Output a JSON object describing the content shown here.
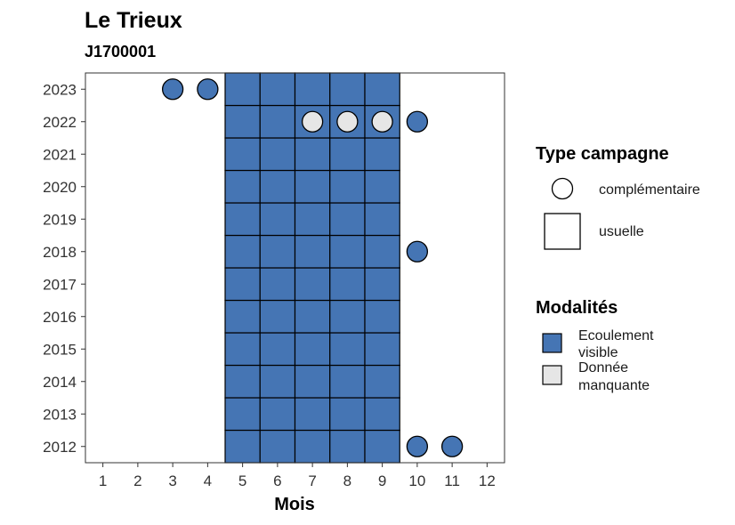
{
  "chart_data": {
    "type": "heatmap",
    "title": "Le Trieux",
    "subtitle": "J1700001",
    "xlabel": "Mois",
    "ylabel": "",
    "x_ticks": [
      1,
      2,
      3,
      4,
      5,
      6,
      7,
      8,
      9,
      10,
      11,
      12
    ],
    "y_ticks": [
      2023,
      2022,
      2021,
      2020,
      2019,
      2018,
      2017,
      2016,
      2015,
      2014,
      2013,
      2012
    ],
    "xlim": [
      0.5,
      12.5
    ],
    "ylim": [
      2011.5,
      2023.5
    ],
    "colors": {
      "ecoulement_visible": "#4575b4",
      "donnee_manquante": "#e6e6e6",
      "border": "#000000"
    },
    "usuelle": {
      "months": [
        5,
        6,
        7,
        8,
        9
      ],
      "years": [
        2012,
        2013,
        2014,
        2015,
        2016,
        2017,
        2018,
        2019,
        2020,
        2021,
        2022,
        2023
      ],
      "modalite": "Ecoulement visible"
    },
    "complementaire": [
      {
        "year": 2023,
        "month": 3,
        "modalite": "Ecoulement visible"
      },
      {
        "year": 2023,
        "month": 4,
        "modalite": "Ecoulement visible"
      },
      {
        "year": 2022,
        "month": 7,
        "modalite": "Donnée manquante"
      },
      {
        "year": 2022,
        "month": 8,
        "modalite": "Donnée manquante"
      },
      {
        "year": 2022,
        "month": 9,
        "modalite": "Donnée manquante"
      },
      {
        "year": 2022,
        "month": 10,
        "modalite": "Ecoulement visible"
      },
      {
        "year": 2018,
        "month": 10,
        "modalite": "Ecoulement visible"
      },
      {
        "year": 2012,
        "month": 10,
        "modalite": "Ecoulement visible"
      },
      {
        "year": 2012,
        "month": 11,
        "modalite": "Ecoulement visible"
      }
    ],
    "legend": {
      "type_campagne": {
        "title": "Type campagne",
        "items": [
          "complémentaire",
          "usuelle"
        ]
      },
      "modalites": {
        "title": "Modalités",
        "items": [
          {
            "label_line1": "Ecoulement",
            "label_line2": "visible",
            "key": "ecoulement_visible"
          },
          {
            "label_line1": "Donnée",
            "label_line2": "manquante",
            "key": "donnee_manquante"
          }
        ]
      }
    }
  }
}
